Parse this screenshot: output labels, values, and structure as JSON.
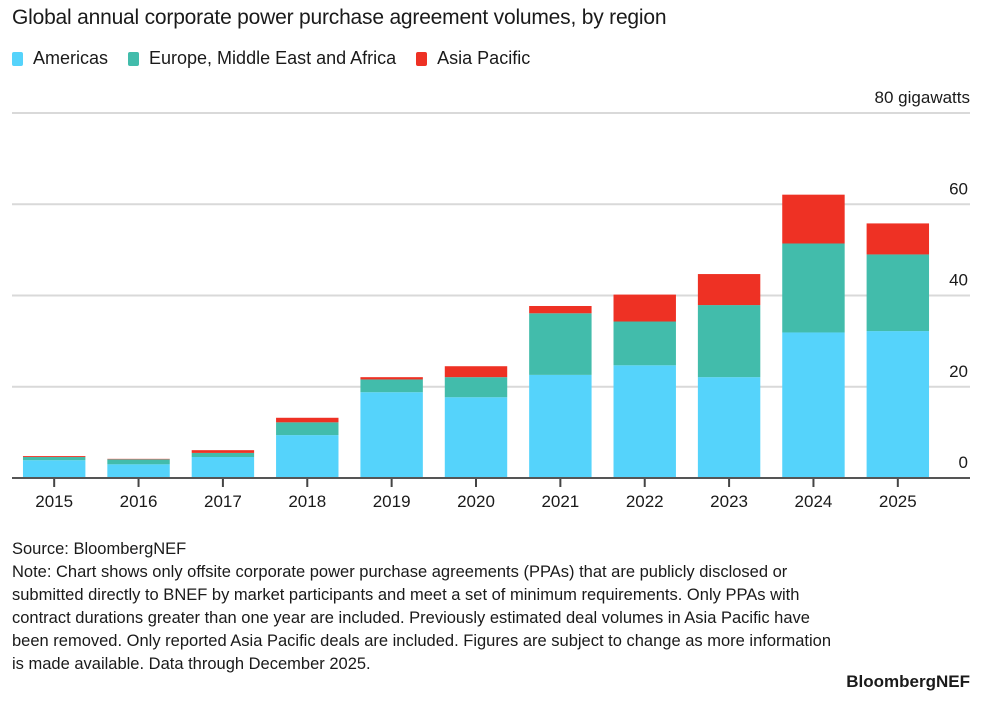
{
  "chart_data": {
    "type": "bar",
    "stacked": true,
    "title": "Global annual corporate power purchase agreement volumes, by region",
    "ylabel": "80 gigawatts",
    "ylim": [
      0,
      80
    ],
    "yticks": [
      "0",
      "20",
      "40",
      "60"
    ],
    "grid": true,
    "legend_position": "top-left",
    "categories": [
      "2015",
      "2016",
      "2017",
      "2018",
      "2019",
      "2020",
      "2021",
      "2022",
      "2023",
      "2024",
      "2025"
    ],
    "series": [
      {
        "name": "Americas",
        "color": "#55d3fb",
        "values": [
          3.9,
          3.0,
          4.6,
          9.4,
          18.8,
          17.7,
          22.6,
          24.7,
          22.1,
          31.9,
          32.2
        ]
      },
      {
        "name": "Europe, Middle East and Africa",
        "color": "#42bcab",
        "values": [
          0.7,
          1.1,
          0.9,
          2.8,
          2.8,
          4.4,
          13.5,
          9.6,
          15.8,
          19.5,
          16.8
        ]
      },
      {
        "name": "Asia Pacific",
        "color": "#ee3124",
        "values": [
          0.2,
          0.1,
          0.6,
          1.0,
          0.5,
          2.4,
          1.6,
          5.9,
          6.8,
          10.7,
          6.8
        ]
      }
    ]
  },
  "footer": {
    "source": "Source: BloombergNEF",
    "note": "Note: Chart shows only offsite corporate power purchase agreements (PPAs) that are publicly disclosed or submitted directly to BNEF by market participants and meet a set of minimum requirements. Only PPAs with contract durations greater than one year are included. Previously estimated deal volumes in Asia Pacific have been removed. Only reported Asia Pacific deals are included. Figures are subject to change as more information is made available. Data through December 2025.",
    "brand": "BloombergNEF"
  }
}
